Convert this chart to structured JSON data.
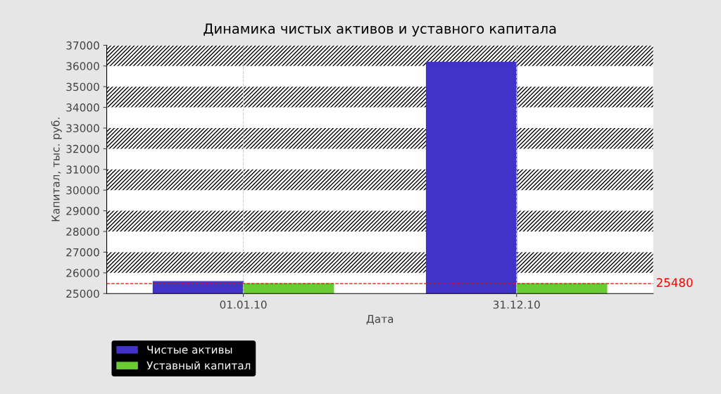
{
  "chart_data": {
    "type": "bar",
    "title": "Динамика чистых активов и уставного капитала",
    "xlabel": "Дата",
    "ylabel": "Капитал, тыс. руб.",
    "categories": [
      "01.01.10",
      "31.12.10"
    ],
    "series": [
      {
        "name": "Чистые активы",
        "color": "#4133c8",
        "values": [
          25580,
          36180
        ]
      },
      {
        "name": "Уставный капитал",
        "color": "#6bcb32",
        "values": [
          25480,
          25480
        ]
      }
    ],
    "ylim": [
      25000,
      37000
    ],
    "yticks": [
      25000,
      26000,
      27000,
      28000,
      29000,
      30000,
      31000,
      32000,
      33000,
      34000,
      35000,
      36000,
      37000
    ],
    "ref_lines": [
      {
        "axis": "y",
        "value": 25480,
        "label": "25480",
        "color": "#ff0000",
        "line_style": "dashed"
      }
    ],
    "bands": [
      {
        "axis": "y",
        "from": 26000,
        "to": 27000,
        "color": "#000000"
      },
      {
        "axis": "y",
        "from": 28000,
        "to": 29000,
        "color": "#000000"
      },
      {
        "axis": "y",
        "from": 30000,
        "to": 31000,
        "color": "#000000"
      },
      {
        "axis": "y",
        "from": 32000,
        "to": 33000,
        "color": "#000000"
      },
      {
        "axis": "y",
        "from": 34000,
        "to": 35000,
        "color": "#000000"
      },
      {
        "axis": "y",
        "from": 36000,
        "to": 37000,
        "color": "#000000"
      }
    ],
    "grid": "x",
    "legend": "bottom left"
  }
}
